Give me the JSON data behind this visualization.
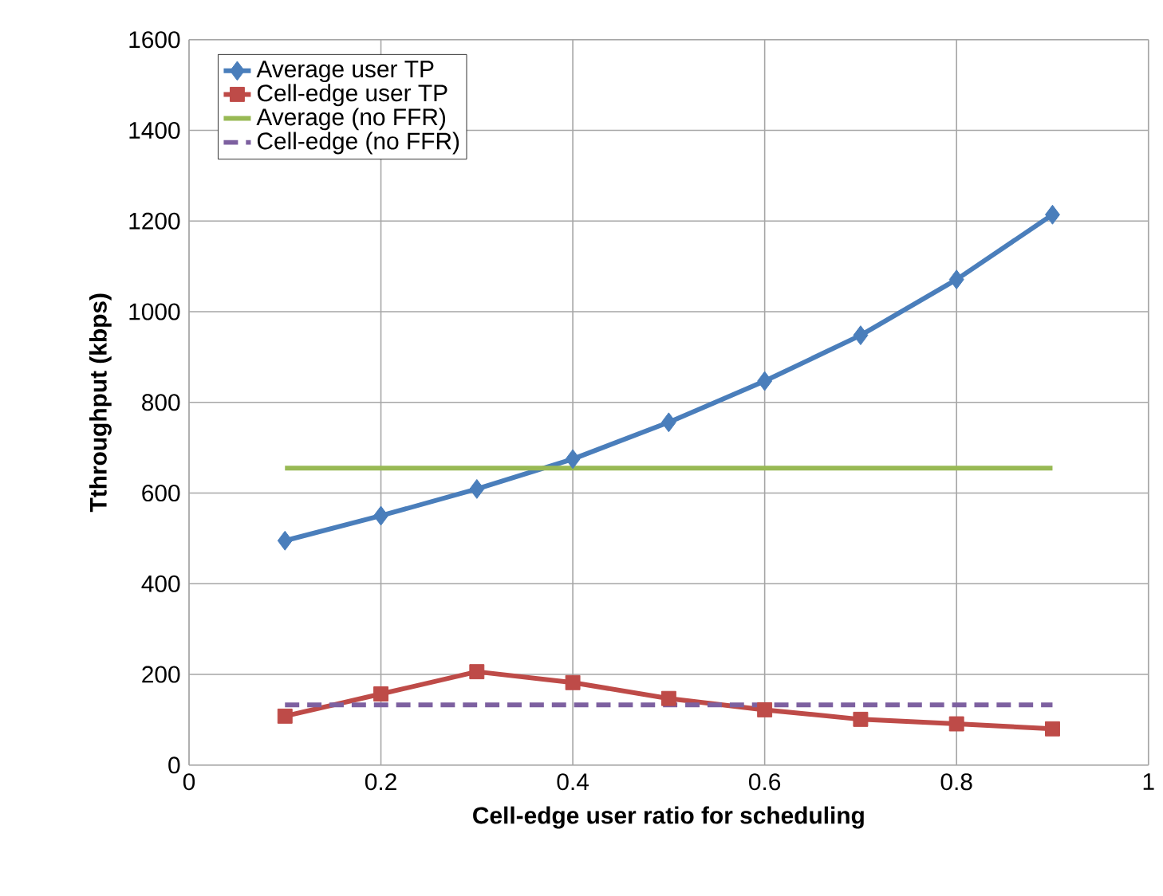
{
  "chart_data": {
    "type": "line",
    "xlabel": "Cell-edge user ratio for scheduling",
    "ylabel": "Tthroughput (kbps)",
    "xlim": [
      0,
      1
    ],
    "xticks": [
      0,
      0.2,
      0.4,
      0.6,
      0.8,
      1
    ],
    "ylim": [
      0,
      1600
    ],
    "yticks": [
      0,
      200,
      400,
      600,
      800,
      1000,
      1200,
      1400,
      1600
    ],
    "grid": true,
    "legend": "top left",
    "series": [
      {
        "name": "Average user TP",
        "color": "#4a7ebb",
        "marker": "diamond",
        "line_style": "solid",
        "x": [
          0.1,
          0.2,
          0.3,
          0.4,
          0.5,
          0.6,
          0.7,
          0.8,
          0.9
        ],
        "values": [
          495,
          550,
          609,
          675,
          756,
          847,
          948,
          1071,
          1214
        ]
      },
      {
        "name": "Cell-edge user TP",
        "color": "#be4b48",
        "marker": "square",
        "line_style": "solid",
        "x": [
          0.1,
          0.2,
          0.3,
          0.4,
          0.5,
          0.6,
          0.7,
          0.8,
          0.9
        ],
        "values": [
          108,
          157,
          206,
          182,
          147,
          122,
          101,
          91,
          80
        ]
      },
      {
        "name": "Average (no FFR)",
        "color": "#98b954",
        "marker": "none",
        "line_style": "solid",
        "x": [
          0.1,
          0.9
        ],
        "values": [
          655,
          655
        ]
      },
      {
        "name": "Cell-edge (no FFR)",
        "color": "#7d60a0",
        "marker": "none",
        "line_style": "dashed",
        "x": [
          0.1,
          0.9
        ],
        "values": [
          133,
          133
        ]
      }
    ]
  }
}
